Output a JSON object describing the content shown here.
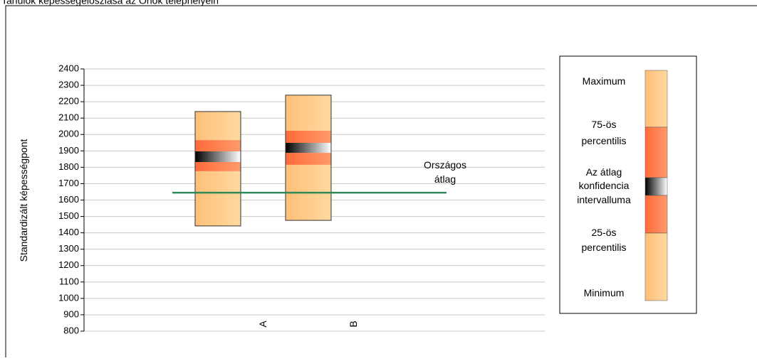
{
  "chart_data": {
    "type": "box",
    "title": "Tanulók képességeloszlása az Önök telephelyein",
    "y_label": "Standardizált képességpont",
    "categories": [
      "A",
      "B"
    ],
    "min": [
      1442,
      1476
    ],
    "q1": [
      1776,
      1815
    ],
    "ci_low": [
      1832,
      1888
    ],
    "ci_high": [
      1897,
      1949
    ],
    "q3": [
      1966,
      2023
    ],
    "max": [
      2140,
      2240
    ],
    "reference": {
      "lines": [
        "Országos",
        "átlag"
      ],
      "value": 1645,
      "color": "#2e8b57"
    },
    "ylim": [
      800,
      2400
    ],
    "yticks": [
      800,
      900,
      1000,
      1100,
      1200,
      1300,
      1400,
      1500,
      1600,
      1700,
      1800,
      1900,
      2000,
      2100,
      2200,
      2300,
      2400
    ],
    "grid": true,
    "legend": {
      "items": [
        [
          "Maximum"
        ],
        [
          "75-ös",
          "percentilis"
        ],
        [
          "Az átlag",
          "konfidencia",
          "intervalluma"
        ],
        [
          "25-ös",
          "percentilis"
        ],
        [
          "Minimum"
        ]
      ]
    }
  }
}
